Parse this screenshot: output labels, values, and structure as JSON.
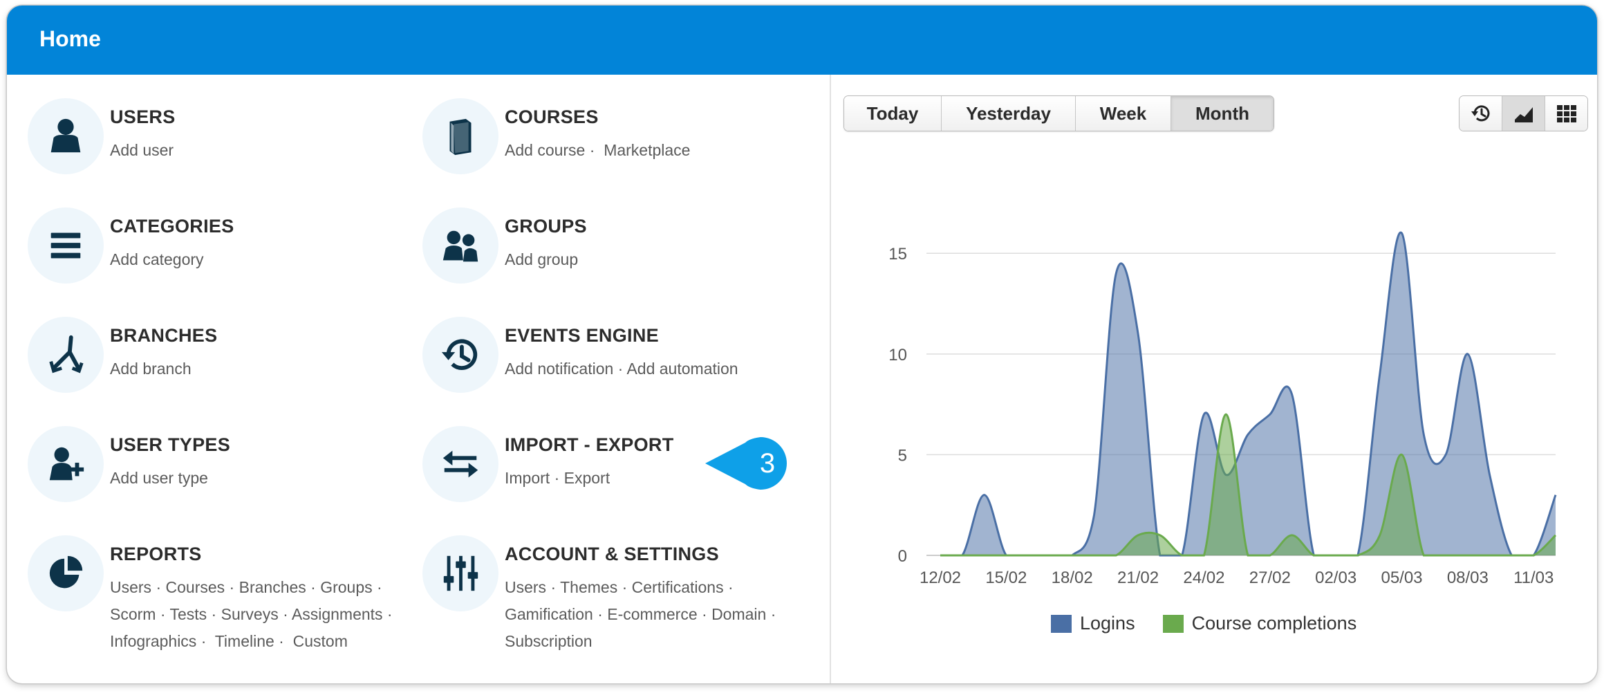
{
  "header": {
    "title": "Home"
  },
  "tiles": [
    {
      "title": "USERS",
      "links": [
        "Add user"
      ]
    },
    {
      "title": "COURSES",
      "links": [
        "Add course ·",
        "Marketplace"
      ]
    },
    {
      "title": "CATEGORIES",
      "links": [
        "Add category"
      ]
    },
    {
      "title": "GROUPS",
      "links": [
        "Add group"
      ]
    },
    {
      "title": "BRANCHES",
      "links": [
        "Add branch"
      ]
    },
    {
      "title": "EVENTS ENGINE",
      "links": [
        "Add notification ·",
        "Add automation"
      ]
    },
    {
      "title": "USER TYPES",
      "links": [
        "Add user type"
      ]
    },
    {
      "title": "IMPORT - EXPORT",
      "links": [
        "Import ·",
        "Export"
      ]
    },
    {
      "title": "REPORTS",
      "links": [
        "Users ·",
        "Courses ·",
        "Branches ·",
        "Groups ·",
        "Scorm ·",
        "Tests ·",
        "Surveys ·",
        "Assignments ·",
        "Infographics ·",
        "Timeline ·",
        "Custom"
      ]
    },
    {
      "title": "ACCOUNT & SETTINGS",
      "links": [
        "Users ·",
        "Themes ·",
        "Certifications ·",
        "Gamification ·",
        "E-commerce ·",
        "Domain ·",
        "Subscription"
      ]
    }
  ],
  "callout": {
    "number": "3"
  },
  "period_buttons": {
    "today": "Today",
    "yesterday": "Yesterday",
    "week": "Week",
    "month": "Month",
    "selected": "Month"
  },
  "view_icons": [
    "history-icon",
    "area-chart-icon",
    "grid-icon"
  ],
  "colors": {
    "header": "#0284d8",
    "icon": "#0d3349",
    "logins": "#4a6fa5",
    "completions": "#6aaa4d",
    "callout": "#0ea0e8"
  },
  "chart_data": {
    "type": "area",
    "x": [
      "12/02",
      "13/02",
      "14/02",
      "15/02",
      "16/02",
      "17/02",
      "18/02",
      "19/02",
      "20/02",
      "21/02",
      "22/02",
      "23/02",
      "24/02",
      "25/02",
      "26/02",
      "27/02",
      "28/02",
      "01/03",
      "02/03",
      "03/03",
      "04/03",
      "05/03",
      "06/03",
      "07/03",
      "08/03",
      "09/03",
      "10/03",
      "11/03",
      "12/03"
    ],
    "xticks": [
      "12/02",
      "15/02",
      "18/02",
      "21/02",
      "24/02",
      "27/02",
      "02/03",
      "05/03",
      "08/03",
      "11/03"
    ],
    "series": [
      {
        "name": "Logins",
        "values": [
          0,
          0,
          3,
          0,
          0,
          0,
          0,
          2,
          14,
          11,
          0,
          0,
          7,
          4,
          6,
          7,
          8,
          0,
          0,
          0,
          9,
          16,
          6,
          5,
          10,
          4,
          0,
          0,
          3
        ]
      },
      {
        "name": "Course completions",
        "values": [
          0,
          0,
          0,
          0,
          0,
          0,
          0,
          0,
          0,
          1,
          1,
          0,
          0,
          7,
          0,
          0,
          1,
          0,
          0,
          0,
          1,
          5,
          0,
          0,
          0,
          0,
          0,
          0,
          1
        ]
      }
    ],
    "ylim": [
      0,
      17
    ],
    "yticks": [
      0,
      5,
      10,
      15
    ],
    "grid": true,
    "legend": "bottom"
  }
}
